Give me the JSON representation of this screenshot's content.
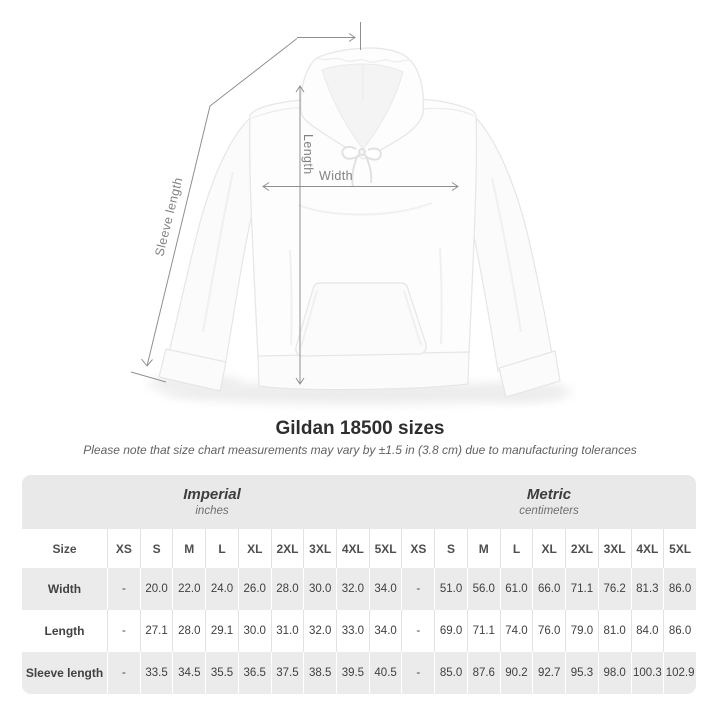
{
  "title": "Gildan 18500 sizes",
  "subtitle": "Please note that size chart measurements may vary by ±1.5 in (3.8 cm) due to manufacturing tolerances",
  "figure": {
    "product": "white pullover hoodie flat-lay",
    "annotations": {
      "sleeve_length_label": "Sleeve length",
      "length_label": "Length",
      "width_label": "Width"
    }
  },
  "table": {
    "size_header": "Size",
    "unit_groups": [
      {
        "label": "Imperial",
        "sublabel": "inches"
      },
      {
        "label": "Metric",
        "sublabel": "centimeters"
      }
    ],
    "sizes": [
      "XS",
      "S",
      "M",
      "L",
      "XL",
      "2XL",
      "3XL",
      "4XL",
      "5XL"
    ],
    "rows": [
      {
        "label": "Width",
        "imperial": [
          "-",
          "20.0",
          "22.0",
          "24.0",
          "26.0",
          "28.0",
          "30.0",
          "32.0",
          "34.0"
        ],
        "metric": [
          "-",
          "51.0",
          "56.0",
          "61.0",
          "66.0",
          "71.1",
          "76.2",
          "81.3",
          "86.0"
        ]
      },
      {
        "label": "Length",
        "imperial": [
          "-",
          "27.1",
          "28.0",
          "29.1",
          "30.0",
          "31.0",
          "32.0",
          "33.0",
          "34.0"
        ],
        "metric": [
          "-",
          "69.0",
          "71.1",
          "74.0",
          "76.0",
          "79.0",
          "81.0",
          "84.0",
          "86.0"
        ]
      },
      {
        "label": "Sleeve length",
        "imperial": [
          "-",
          "33.5",
          "34.5",
          "35.5",
          "36.5",
          "37.5",
          "38.5",
          "39.5",
          "40.5"
        ],
        "metric": [
          "-",
          "85.0",
          "87.6",
          "90.2",
          "92.7",
          "95.3",
          "98.0",
          "100.3",
          "102.9"
        ]
      }
    ]
  },
  "colors": {
    "header_band": "#e9e9e9",
    "row_stripe": "#ebebeb",
    "annotation_gray": "#8f8f8f",
    "title_text": "#2e2e2e"
  }
}
